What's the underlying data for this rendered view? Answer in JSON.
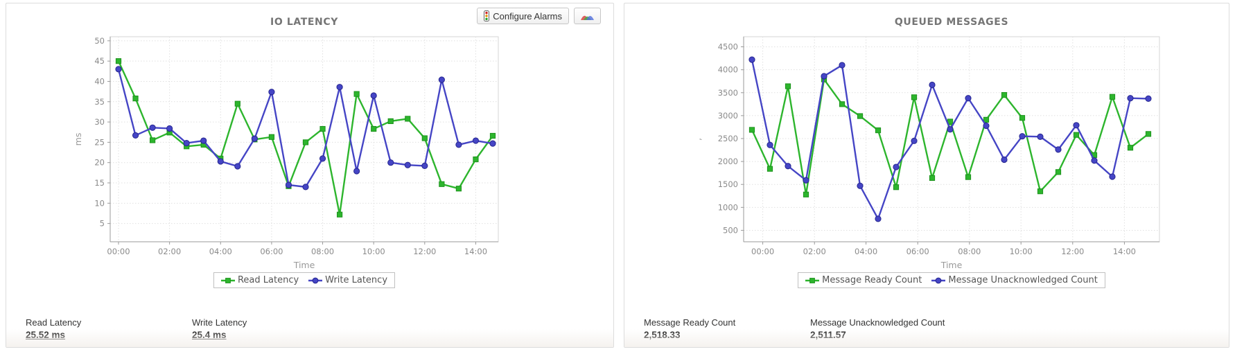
{
  "toolbar": {
    "configure_alarms_label": "Configure Alarms",
    "icons": {
      "alarms_button_icon": "traffic-light-icon",
      "chart_button_icon": "line-chart-icon"
    }
  },
  "panels": [
    {
      "id": "io",
      "title": "IO LATENCY",
      "stats": [
        {
          "label": "Read Latency",
          "value": "25.52 ms",
          "underline": true
        },
        {
          "label": "Write Latency",
          "value": "25.4 ms",
          "underline": true
        }
      ]
    },
    {
      "id": "qm",
      "title": "QUEUED MESSAGES",
      "stats": [
        {
          "label": "Message Ready Count",
          "value": "2,518.33",
          "underline": false
        },
        {
          "label": "Message Unacknowledged Count",
          "value": "2,511.57",
          "underline": false
        }
      ]
    }
  ],
  "colors": {
    "series_green": "#2db52d",
    "series_green_edge": "#1d931d",
    "series_blue": "#4545c5",
    "series_blue_edge": "#26268f",
    "grid": "#e0e0e0",
    "plot_border": "#d4d4d4",
    "axis": "#9a9a9a",
    "tick_label": "#8a8a8a",
    "axis_title": "#999999",
    "chart_title": "#757575"
  },
  "chart_data": [
    {
      "type": "line",
      "title": "IO LATENCY",
      "xlabel": "Time",
      "ylabel": "ms",
      "ylim": [
        0.5,
        51
      ],
      "y_ticks": [
        5,
        10,
        15,
        20,
        25,
        30,
        35,
        40,
        45,
        50
      ],
      "x_tick_labels": [
        "00:00",
        "02:00",
        "04:00",
        "06:00",
        "08:00",
        "10:00",
        "12:00",
        "14:00"
      ],
      "x_tick_positions": [
        0,
        3,
        6,
        9,
        12,
        15,
        18,
        21
      ],
      "grid": true,
      "legend_position": "bottom",
      "series": [
        {
          "name": "Read Latency",
          "color": "#2db52d",
          "marker": "square",
          "values": [
            45,
            35.8,
            25.5,
            27.4,
            24,
            24.4,
            21,
            34.5,
            25.7,
            26.3,
            14.2,
            25,
            28.3,
            7.2,
            36.9,
            28.3,
            30.2,
            30.8,
            26,
            14.7,
            13.6,
            20.8,
            26.6
          ]
        },
        {
          "name": "Write Latency",
          "color": "#4545c5",
          "marker": "circle",
          "values": [
            43,
            26.7,
            28.6,
            28.4,
            24.8,
            25.4,
            20.3,
            19.1,
            25.9,
            37.4,
            14.5,
            14,
            21,
            38.6,
            17.9,
            36.5,
            20,
            19.4,
            19.2,
            40.4,
            24.4,
            25.4,
            24.7
          ]
        }
      ]
    },
    {
      "type": "line",
      "title": "QUEUED MESSAGES",
      "xlabel": "Time",
      "ylabel": ",",
      "ylim": [
        250,
        4720
      ],
      "y_ticks": [
        500,
        1000,
        1500,
        2000,
        2500,
        3000,
        3500,
        4000,
        4500
      ],
      "x_tick_labels": [
        "00:00",
        "02:00",
        "04:00",
        "06:00",
        "08:00",
        "10:00",
        "12:00",
        "14:00"
      ],
      "x_tick_positions": [
        0.6,
        3.47,
        6.33,
        9.2,
        12.07,
        14.93,
        17.8,
        20.67
      ],
      "grid": true,
      "legend_position": "bottom",
      "series": [
        {
          "name": "Message Ready Count",
          "color": "#2db52d",
          "marker": "square",
          "values": [
            2690,
            1840,
            3640,
            1280,
            3790,
            3250,
            2990,
            2680,
            1440,
            3400,
            1640,
            2870,
            1660,
            2910,
            3450,
            2950,
            1350,
            1770,
            2580,
            2140,
            3410,
            2300,
            2600
          ]
        },
        {
          "name": "Message Unacknowledged Count",
          "color": "#4545c5",
          "marker": "circle",
          "values": [
            4220,
            2360,
            1900,
            1590,
            3860,
            4100,
            1470,
            750,
            1880,
            2450,
            3670,
            2700,
            3380,
            2780,
            2040,
            2550,
            2540,
            2260,
            2790,
            2020,
            1670,
            3380,
            3370
          ]
        }
      ]
    }
  ]
}
